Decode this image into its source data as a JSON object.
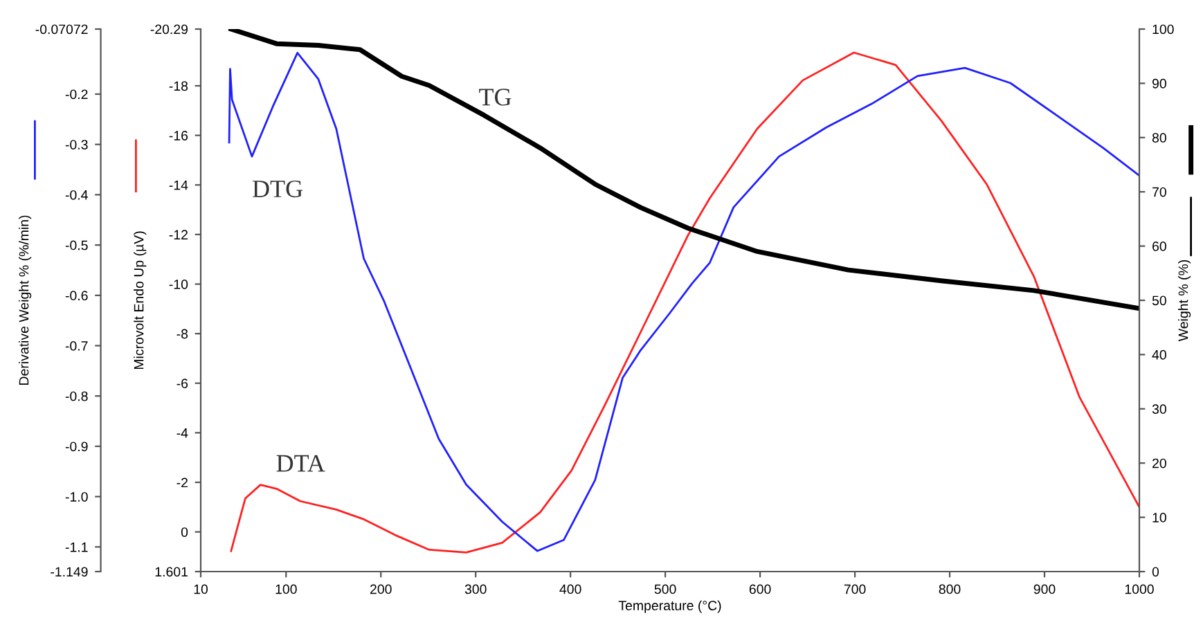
{
  "chart_data": {
    "type": "line",
    "xlabel": "Temperature (°C)",
    "ylabel": "Microvolt Endo Up (µV)",
    "y2label": "Derivative Weight % (%/min)",
    "y3label": "Weight % (%)",
    "xlim": [
      10,
      1000
    ],
    "xticks": [
      10,
      100,
      200,
      300,
      400,
      500,
      600,
      700,
      800,
      900,
      1000
    ],
    "ylim": [
      1.601,
      -20.29
    ],
    "yticks": [
      -20.29,
      -18,
      -16,
      -14,
      -12,
      -10,
      -8,
      -6,
      -4,
      -2,
      0,
      1.601
    ],
    "y2lim": [
      -1.149,
      -0.07072
    ],
    "y2ticks": [
      -0.07072,
      -0.2,
      -0.3,
      -0.4,
      -0.5,
      -0.6,
      -0.7,
      -0.8,
      -0.9,
      {
        "value": -1.0,
        "label": "-1.0"
      },
      -1.1,
      -1.149
    ],
    "y3lim": [
      0,
      100
    ],
    "y3ticks": [
      0,
      10,
      20,
      30,
      40,
      50,
      60,
      70,
      80,
      90,
      100
    ],
    "grid": false,
    "legend": false,
    "marker": "none",
    "line_style": "solid",
    "series": [
      {
        "name": "DTA",
        "color": "#ff2020",
        "axis": "y",
        "x": [
          42,
          57,
          73,
          90,
          115,
          153,
          182,
          217,
          251,
          290,
          328,
          368,
          401,
          436,
          474,
          524,
          547,
          597,
          645,
          699,
          743,
          791,
          839,
          889,
          937,
          1000
        ],
        "values": [
          0.77,
          -1.35,
          -1.9,
          -1.74,
          -1.24,
          -0.9,
          -0.51,
          0.16,
          0.72,
          0.83,
          0.44,
          -0.79,
          -2.47,
          -5.1,
          -8.06,
          -11.97,
          -13.47,
          -16.27,
          -18.22,
          -19.34,
          -18.84,
          -16.6,
          -14.03,
          -10.29,
          -5.43,
          -1.0
        ]
      },
      {
        "name": "DTG",
        "color": "#2020ff",
        "axis": "y2",
        "x": [
          40,
          41,
          43,
          64,
          86,
          112,
          134,
          153,
          182,
          203,
          232,
          261,
          290,
          328,
          365,
          393,
          426,
          455,
          474,
          504,
          528,
          547,
          572,
          620,
          670,
          718,
          766,
          816,
          864,
          912,
          962,
          1000
        ],
        "values": [
          -0.296,
          -0.15,
          -0.211,
          -0.324,
          -0.225,
          -0.118,
          -0.17,
          -0.269,
          -0.527,
          -0.61,
          -0.747,
          -0.885,
          -0.976,
          -1.05,
          -1.108,
          -1.086,
          -0.967,
          -0.764,
          -0.709,
          -0.637,
          -0.577,
          -0.535,
          -0.425,
          -0.324,
          -0.266,
          -0.219,
          -0.164,
          -0.148,
          -0.178,
          -0.241,
          -0.307,
          -0.362
        ]
      },
      {
        "name": "TG",
        "color": "#000000",
        "axis": "y3",
        "x": [
          42,
          90,
          134,
          178,
          222,
          251,
          309,
          368,
          426,
          474,
          524,
          597,
          693,
          791,
          889,
          1000
        ],
        "values": [
          100,
          97.3,
          97.0,
          96.2,
          91.3,
          89.6,
          84.1,
          78.1,
          71.4,
          67.1,
          63.3,
          59.0,
          55.6,
          53.6,
          51.8,
          48.5
        ]
      }
    ]
  }
}
